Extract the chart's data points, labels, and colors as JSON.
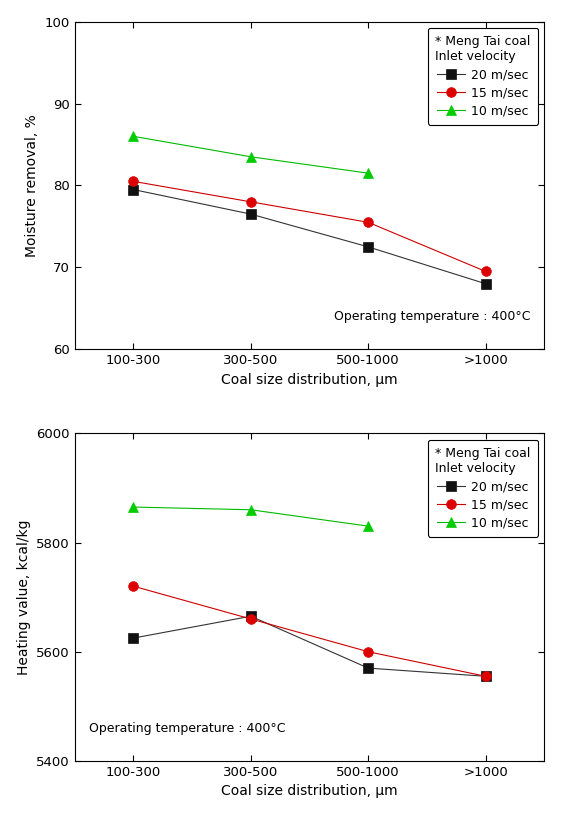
{
  "x_labels": [
    "100-300",
    "300-500",
    "500-1000",
    ">1000"
  ],
  "x_positions": [
    0,
    1,
    2,
    3
  ],
  "top": {
    "ylabel": "Moisture removal, %",
    "xlabel": "Coal size distribution, μm",
    "ylim": [
      60,
      100
    ],
    "yticks": [
      60,
      70,
      80,
      90,
      100
    ],
    "annotation": "Operating temperature : 400°C",
    "annot_loc": "lower right",
    "legend_title_line1": "* Meng Tai coal",
    "legend_title_line2": "Inlet velocity",
    "series": [
      {
        "label": "20 m/sec",
        "color": "#333333",
        "marker": "s",
        "markercolor": "#111111",
        "values": [
          79.5,
          76.5,
          72.5,
          68.0
        ]
      },
      {
        "label": "15 m/sec",
        "color": "#cc0000",
        "marker": "o",
        "markercolor": "#dd0000",
        "values": [
          80.5,
          78.0,
          75.5,
          69.5
        ]
      },
      {
        "label": "10 m/sec",
        "color": "#00bb00",
        "marker": "^",
        "markercolor": "#00cc00",
        "values": [
          86.0,
          83.5,
          81.5,
          null
        ]
      }
    ]
  },
  "bottom": {
    "ylabel": "Heating value, kcal/kg",
    "xlabel": "Coal size distribution, μm",
    "ylim": [
      5400,
      6000
    ],
    "yticks": [
      5400,
      5600,
      5800,
      6000
    ],
    "annotation": "Operating temperature : 400°C",
    "annot_loc": "lower left",
    "legend_title_line1": "* Meng Tai coal",
    "legend_title_line2": "Inlet velocity",
    "series": [
      {
        "label": "20 m/sec",
        "color": "#333333",
        "marker": "s",
        "markercolor": "#111111",
        "values": [
          5625,
          5665,
          5570,
          5555
        ]
      },
      {
        "label": "15 m/sec",
        "color": "#cc0000",
        "marker": "o",
        "markercolor": "#dd0000",
        "values": [
          5720,
          5660,
          5600,
          5555
        ]
      },
      {
        "label": "10 m/sec",
        "color": "#00bb00",
        "marker": "^",
        "markercolor": "#00cc00",
        "values": [
          5865,
          5860,
          5830,
          null
        ]
      }
    ]
  },
  "figsize": [
    5.61,
    8.15
  ],
  "dpi": 100
}
